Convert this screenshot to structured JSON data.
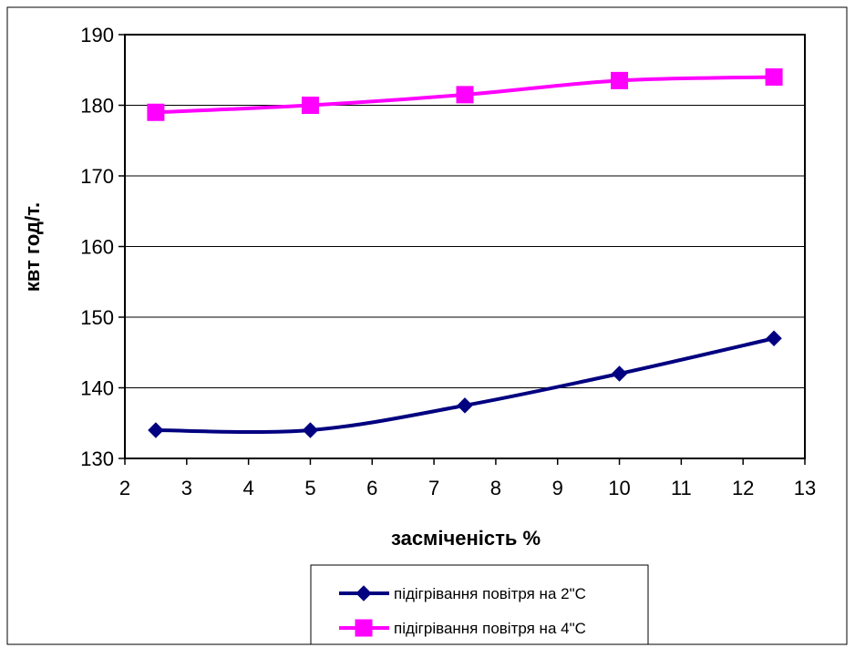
{
  "chart_data": {
    "type": "line",
    "xlabel": "засміченість %",
    "ylabel": "квт год/т.",
    "xlim": [
      2,
      13
    ],
    "ylim": [
      130,
      190
    ],
    "x_ticks": [
      "2",
      "3",
      "4",
      "5",
      "6",
      "7",
      "8",
      "9",
      "10",
      "11",
      "12",
      "13"
    ],
    "y_ticks": [
      "130",
      "140",
      "150",
      "160",
      "170",
      "180",
      "190"
    ],
    "grid": "horizontal",
    "legend_position": "bottom",
    "x": [
      2.5,
      5,
      7.5,
      10,
      12.5
    ],
    "series": [
      {
        "name": "підігрівання повітря на 2\"С",
        "values": [
          134,
          134,
          137.5,
          142,
          147
        ],
        "color": "#000080",
        "marker": "diamond"
      },
      {
        "name": "підігрівання повітря на 4\"С",
        "values": [
          179,
          180,
          181.5,
          183.5,
          184
        ],
        "color": "#FF00FF",
        "marker": "square"
      }
    ]
  }
}
